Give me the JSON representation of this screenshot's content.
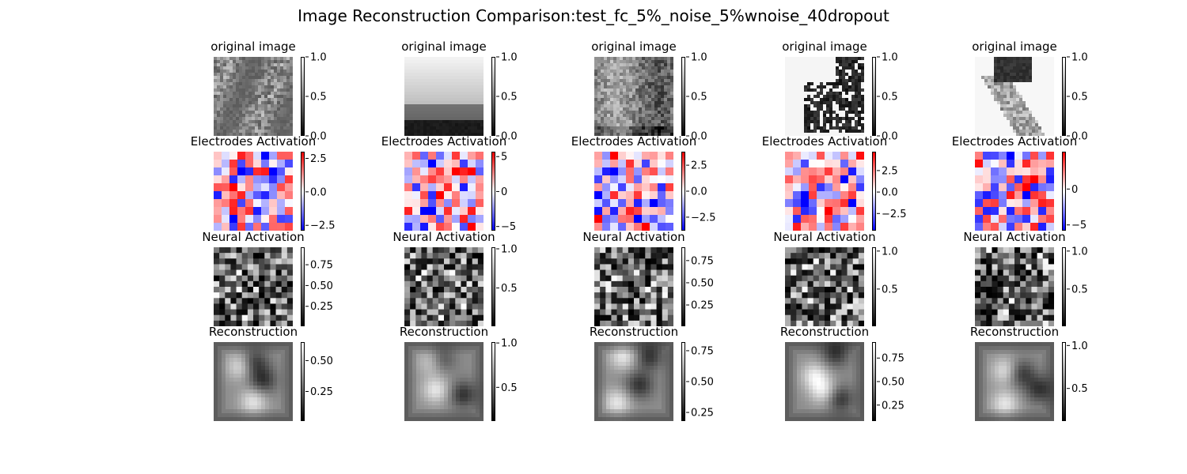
{
  "figure_title": "Image Reconstruction Comparison:test_fc_5%_noise_5%wnoise_40dropout",
  "chart_data": {
    "type": "heatmap",
    "columns": 5,
    "row_titles": [
      "original image",
      "Electrodes Activation",
      "Neural Activation",
      "Reconstruction"
    ],
    "colormaps": {
      "original image": "gray",
      "Electrodes Activation": "bwr",
      "Neural Activation": "gray",
      "Reconstruction": "gray"
    },
    "colorbars": [
      [
        {
          "min": 0.0,
          "max": 1.0,
          "ticks": [
            "0.0",
            "0.5",
            "1.0"
          ],
          "tick_values": [
            0.0,
            0.5,
            1.0
          ]
        },
        {
          "min": -2.9,
          "max": 3.0,
          "ticks": [
            "−2.5",
            "0.0",
            "2.5"
          ],
          "tick_values": [
            -2.5,
            0.0,
            2.5
          ]
        },
        {
          "min": 0.01,
          "max": 0.96,
          "ticks": [
            "0.25",
            "0.50",
            "0.75"
          ],
          "tick_values": [
            0.25,
            0.5,
            0.75
          ]
        },
        {
          "min": 0.01,
          "max": 0.65,
          "ticks": [
            "0.25",
            "0.50"
          ],
          "tick_values": [
            0.25,
            0.5
          ]
        }
      ],
      [
        {
          "min": 0.0,
          "max": 1.0,
          "ticks": [
            "0.0",
            "0.5",
            "1.0"
          ],
          "tick_values": [
            0.0,
            0.5,
            1.0
          ]
        },
        {
          "min": -5.6,
          "max": 5.7,
          "ticks": [
            "−5",
            "0",
            "5"
          ],
          "tick_values": [
            -5,
            0,
            5
          ]
        },
        {
          "min": 0.01,
          "max": 1.02,
          "ticks": [
            "0.5",
            "1.0"
          ],
          "tick_values": [
            0.5,
            1.0
          ]
        },
        {
          "min": 0.12,
          "max": 1.01,
          "ticks": [
            "0.5",
            "1.0"
          ],
          "tick_values": [
            0.5,
            1.0
          ]
        }
      ],
      [
        {
          "min": 0.0,
          "max": 1.0,
          "ticks": [
            "0.0",
            "0.5",
            "1.0"
          ],
          "tick_values": [
            0.0,
            0.5,
            1.0
          ]
        },
        {
          "min": -3.8,
          "max": 3.8,
          "ticks": [
            "−2.5",
            "0.0",
            "2.5"
          ],
          "tick_values": [
            -2.5,
            0.0,
            2.5
          ]
        },
        {
          "min": 0.01,
          "max": 0.9,
          "ticks": [
            "0.25",
            "0.50",
            "0.75"
          ],
          "tick_values": [
            0.25,
            0.5,
            0.75
          ]
        },
        {
          "min": 0.18,
          "max": 0.82,
          "ticks": [
            "0.25",
            "0.50",
            "0.75"
          ],
          "tick_values": [
            0.25,
            0.5,
            0.75
          ]
        }
      ],
      [
        {
          "min": 0.0,
          "max": 1.0,
          "ticks": [
            "0.0",
            "0.5",
            "1.0"
          ],
          "tick_values": [
            0.0,
            0.5,
            1.0
          ]
        },
        {
          "min": -4.5,
          "max": 4.7,
          "ticks": [
            "−2.5",
            "0.0",
            "2.5"
          ],
          "tick_values": [
            -2.5,
            0.0,
            2.5
          ]
        },
        {
          "min": 0.01,
          "max": 1.05,
          "ticks": [
            "0.5",
            "1.0"
          ],
          "tick_values": [
            0.5,
            1.0
          ]
        },
        {
          "min": 0.08,
          "max": 0.92,
          "ticks": [
            "0.25",
            "0.50",
            "0.75"
          ],
          "tick_values": [
            0.25,
            0.5,
            0.75
          ]
        }
      ],
      [
        {
          "min": 0.0,
          "max": 1.0,
          "ticks": [
            "0.0",
            "0.5",
            "1.0"
          ],
          "tick_values": [
            0.0,
            0.5,
            1.0
          ]
        },
        {
          "min": -5.8,
          "max": 5.2,
          "ticks": [
            "0",
            "−5"
          ],
          "tick_values": [
            0,
            -5
          ]
        },
        {
          "min": 0.01,
          "max": 1.05,
          "ticks": [
            "0.5",
            "1.0"
          ],
          "tick_values": [
            0.5,
            1.0
          ]
        },
        {
          "min": 0.12,
          "max": 1.04,
          "ticks": [
            "0.5",
            "1.0"
          ],
          "tick_values": [
            0.5,
            1.0
          ]
        }
      ]
    ]
  }
}
